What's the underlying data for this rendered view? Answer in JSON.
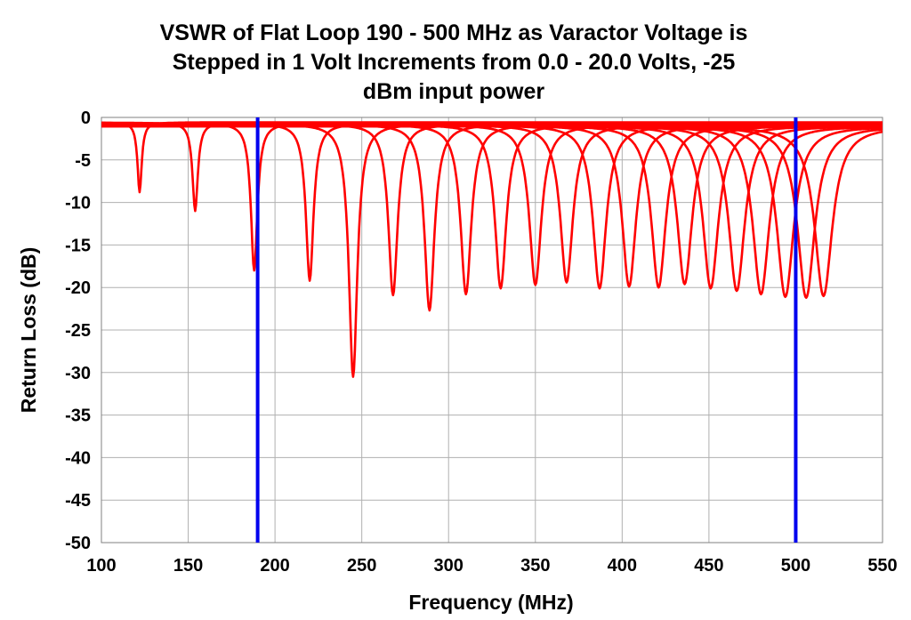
{
  "chart_data": {
    "type": "line",
    "title_lines": [
      "VSWR of Flat Loop 190 - 500 MHz as Varactor Voltage is",
      "Stepped in 1 Volt Increments from 0.0 - 20.0 Volts, -25",
      "dBm input power"
    ],
    "xlabel": "Frequency (MHz)",
    "ylabel": "Return Loss (dB)",
    "xlim": [
      100,
      550
    ],
    "ylim": [
      -50,
      0
    ],
    "x_ticks": [
      100,
      150,
      200,
      250,
      300,
      350,
      400,
      450,
      500,
      550
    ],
    "y_ticks": [
      0,
      -5,
      -10,
      -15,
      -20,
      -25,
      -30,
      -35,
      -40,
      -45,
      -50
    ],
    "grid": true,
    "legend": "none",
    "resonances": [
      {
        "f0": 122,
        "depth": -8.8
      },
      {
        "f0": 154,
        "depth": -11
      },
      {
        "f0": 188,
        "depth": -18
      },
      {
        "f0": 220,
        "depth": -19.2
      },
      {
        "f0": 245,
        "depth": -30.5
      },
      {
        "f0": 268,
        "depth": -20.9
      },
      {
        "f0": 289,
        "depth": -22.7
      },
      {
        "f0": 310,
        "depth": -20.8
      },
      {
        "f0": 330,
        "depth": -20.1
      },
      {
        "f0": 350,
        "depth": -19.7
      },
      {
        "f0": 368,
        "depth": -19.4
      },
      {
        "f0": 387,
        "depth": -20.1
      },
      {
        "f0": 404,
        "depth": -19.9
      },
      {
        "f0": 421,
        "depth": -20
      },
      {
        "f0": 436,
        "depth": -19.6
      },
      {
        "f0": 451,
        "depth": -20.1
      },
      {
        "f0": 466,
        "depth": -20.4
      },
      {
        "f0": 480,
        "depth": -20.8
      },
      {
        "f0": 494,
        "depth": -21.1
      },
      {
        "f0": 506,
        "depth": -21.2
      },
      {
        "f0": 516,
        "depth": -21
      }
    ],
    "markers": [
      190,
      500
    ],
    "series_color": "#ff0000",
    "marker_color": "#0000ee"
  }
}
